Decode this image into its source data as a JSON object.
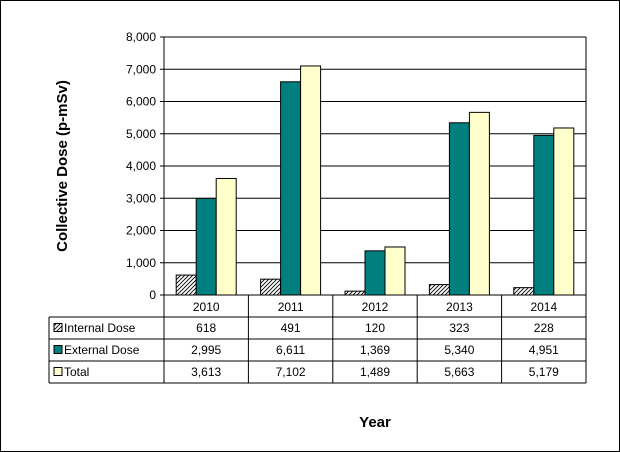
{
  "chart_data": {
    "type": "bar",
    "title": "",
    "xlabel": "Year",
    "ylabel": "Collective Dose (p-mSv)",
    "categories": [
      "2010",
      "2011",
      "2012",
      "2013",
      "2014"
    ],
    "ylim": [
      0,
      8000
    ],
    "yticks": [
      0,
      1000,
      2000,
      3000,
      4000,
      5000,
      6000,
      7000,
      8000
    ],
    "ytick_labels": [
      "0",
      "1,000",
      "2,000",
      "3,000",
      "4,000",
      "5,000",
      "6,000",
      "7,000",
      "8,000"
    ],
    "grid": true,
    "legend": "data table",
    "series": [
      {
        "name": "Internal Dose",
        "values": [
          618,
          491,
          120,
          323,
          228
        ],
        "labels": [
          "618",
          "491",
          "120",
          "323",
          "228"
        ],
        "color": "#ffffff",
        "pattern": "diagonal-hatch"
      },
      {
        "name": "External Dose",
        "values": [
          2995,
          6611,
          1369,
          5340,
          4951
        ],
        "labels": [
          "2,995",
          "6,611",
          "1,369",
          "5,340",
          "4,951"
        ],
        "color": "#007f7f"
      },
      {
        "name": "Total",
        "values": [
          3613,
          7102,
          1489,
          5663,
          5179
        ],
        "labels": [
          "3,613",
          "7,102",
          "1,489",
          "5,663",
          "5,179"
        ],
        "color": "#ffffcc"
      }
    ]
  }
}
